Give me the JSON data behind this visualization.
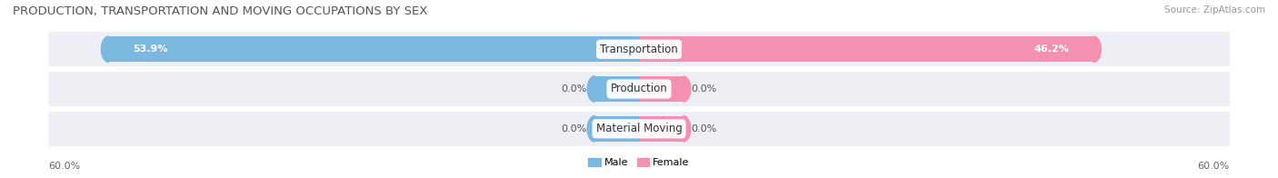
{
  "title": "PRODUCTION, TRANSPORTATION AND MOVING OCCUPATIONS BY SEX",
  "source": "Source: ZipAtlas.com",
  "categories": [
    "Transportation",
    "Production",
    "Material Moving"
  ],
  "male_values": [
    53.9,
    0.0,
    0.0
  ],
  "female_values": [
    46.2,
    0.0,
    0.0
  ],
  "male_color": "#7ab8e0",
  "female_color": "#f490b0",
  "bar_bg_color": "#eeeff5",
  "row_sep_color": "#ffffff",
  "axis_max": 60.0,
  "small_stub": 4.5,
  "legend_male_label": "Male",
  "legend_female_label": "Female",
  "title_fontsize": 9.5,
  "source_fontsize": 7.5,
  "value_fontsize": 8,
  "axis_label_fontsize": 8,
  "category_fontsize": 8.5
}
